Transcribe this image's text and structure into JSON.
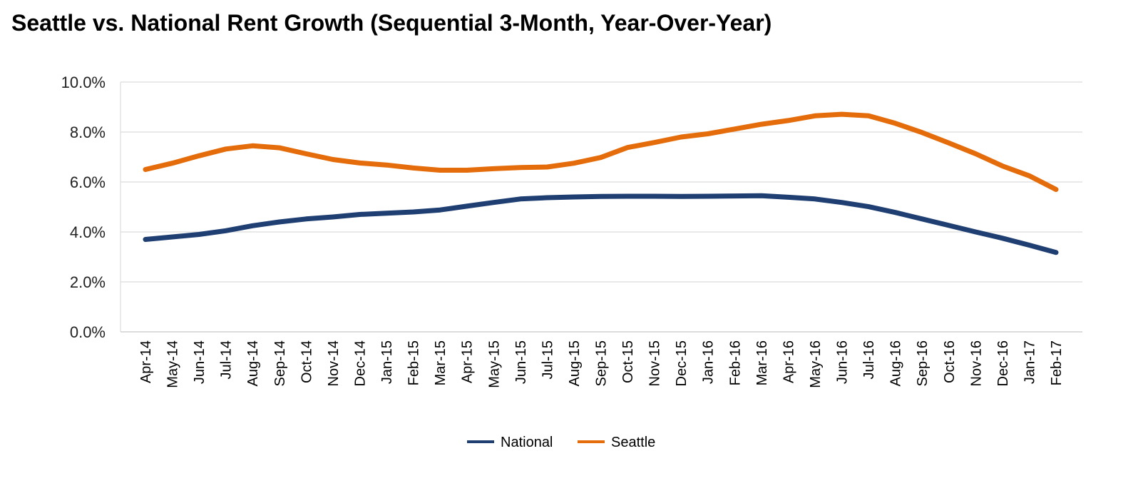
{
  "chart_data": {
    "type": "line",
    "title": "Seattle vs. National Rent Growth (Sequential 3-Month, Year-Over-Year)",
    "xlabel": "",
    "ylabel": "",
    "x": [
      "Apr-14",
      "May-14",
      "Jun-14",
      "Jul-14",
      "Aug-14",
      "Sep-14",
      "Oct-14",
      "Nov-14",
      "Dec-14",
      "Jan-15",
      "Feb-15",
      "Mar-15",
      "Apr-15",
      "May-15",
      "Jun-15",
      "Jul-15",
      "Aug-15",
      "Sep-15",
      "Oct-15",
      "Nov-15",
      "Dec-15",
      "Jan-16",
      "Feb-16",
      "Mar-16",
      "Apr-16",
      "May-16",
      "Jun-16",
      "Jul-16",
      "Aug-16",
      "Sep-16",
      "Oct-16",
      "Nov-16",
      "Dec-16",
      "Jan-17",
      "Feb-17"
    ],
    "ylim": [
      0,
      10
    ],
    "yticks": [
      0,
      2,
      4,
      6,
      8,
      10
    ],
    "ytick_labels": [
      "0.0%",
      "2.0%",
      "4.0%",
      "6.0%",
      "8.0%",
      "10.0%"
    ],
    "grid": true,
    "legend_position": "bottom",
    "series": [
      {
        "name": "National",
        "color": "#1f3f73",
        "values": [
          3.7,
          3.8,
          3.9,
          4.05,
          4.25,
          4.4,
          4.52,
          4.6,
          4.7,
          4.75,
          4.8,
          4.88,
          5.03,
          5.18,
          5.32,
          5.37,
          5.4,
          5.42,
          5.43,
          5.43,
          5.42,
          5.43,
          5.44,
          5.45,
          5.39,
          5.32,
          5.18,
          5.01,
          4.78,
          4.52,
          4.26,
          4.0,
          3.75,
          3.47,
          3.18
        ]
      },
      {
        "name": "Seattle",
        "color": "#e46c0a",
        "values": [
          6.5,
          6.75,
          7.05,
          7.32,
          7.45,
          7.37,
          7.13,
          6.9,
          6.76,
          6.68,
          6.56,
          6.47,
          6.47,
          6.53,
          6.58,
          6.6,
          6.75,
          6.98,
          7.38,
          7.58,
          7.8,
          7.93,
          8.12,
          8.31,
          8.46,
          8.65,
          8.71,
          8.65,
          8.35,
          7.98,
          7.56,
          7.13,
          6.64,
          6.25,
          5.7
        ]
      }
    ]
  }
}
